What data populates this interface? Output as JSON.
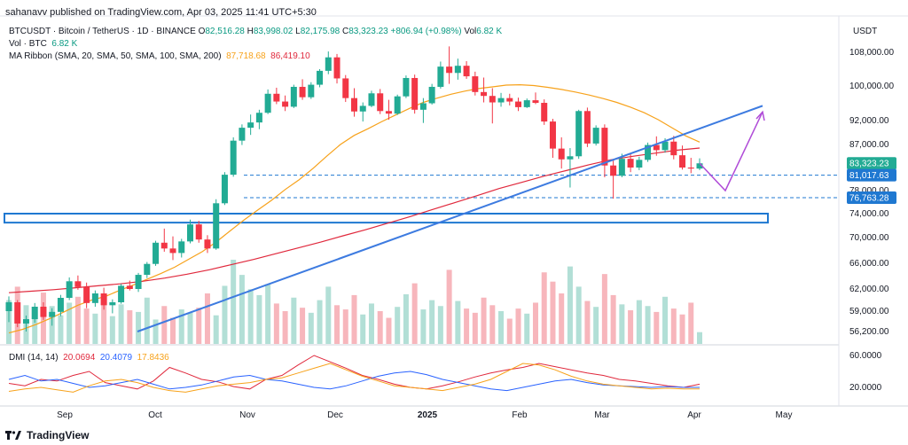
{
  "header": {
    "published": "sahanavv published on TradingView.com, Apr 03, 2025 11:41 UTC+5:30"
  },
  "legend": {
    "symbol": "BTCUSDT · Bitcoin / TetherUS · 1D · BINANCE",
    "o_label": "O",
    "o": "82,516.28",
    "h_label": "H",
    "h": "83,998.02",
    "l_label": "L",
    "l": "82,175.98",
    "c_label": "C",
    "c": "83,323.23",
    "change": "+806.94 (+0.98%)",
    "vol_label": "Vol",
    "vol": "6.82 K",
    "vol_btc_label": "Vol · BTC",
    "vol_btc": "6.82 K",
    "ma_label": "MA Ribbon (SMA, 20, SMA, 50, SMA, 100, SMA, 200)",
    "ma1": "87,718.68",
    "ma2": "86,419.10"
  },
  "currency": "USDT",
  "dmi": {
    "label": "DMI (14, 14)",
    "v1": "20.0694",
    "v2": "20.4079",
    "v3": "17.8436"
  },
  "footer": {
    "brand": "TradingView"
  },
  "colors": {
    "up": "#22ab94",
    "down": "#f23645",
    "ma_orange": "#f7a21b",
    "ma_red": "#e0283c",
    "trend": "#3d7be0",
    "projection": "#b04cd8",
    "zone": "#1f78d1"
  },
  "chart_data": {
    "type": "candlestick",
    "x_ticks": [
      "Sep",
      "Oct",
      "Nov",
      "Dec",
      "2025",
      "Feb",
      "Mar",
      "Apr",
      "May"
    ],
    "y_ticks": [
      "108,000.00",
      "100,000.00",
      "92,000.00",
      "87,000.00",
      "78,000.00",
      "74,000.00",
      "70,000.00",
      "66,000.00",
      "62,000.00",
      "59,000.00",
      "56,200.00"
    ],
    "price_tags": [
      {
        "value": 83323.23,
        "label": "83,323.23",
        "color": "#22ab94"
      },
      {
        "value": 81017.63,
        "label": "81,017.63",
        "color": "#1f78d1"
      },
      {
        "value": 76763.28,
        "label": "76,763.28",
        "color": "#1f78d1"
      }
    ],
    "dmi_ticks": [
      "60.0000",
      "20.0000"
    ],
    "candles_ohlc": [
      [
        59000,
        61000,
        57500,
        60200
      ],
      [
        60200,
        60500,
        56800,
        57300
      ],
      [
        57300,
        58400,
        56200,
        57900
      ],
      [
        57900,
        60100,
        57400,
        59600
      ],
      [
        59600,
        60200,
        57800,
        58200
      ],
      [
        58200,
        59400,
        57000,
        58900
      ],
      [
        58900,
        61200,
        58300,
        60800
      ],
      [
        60800,
        63800,
        60500,
        63200
      ],
      [
        63200,
        64100,
        61900,
        62300
      ],
      [
        62300,
        63000,
        59400,
        60100
      ],
      [
        60100,
        61800,
        59600,
        61400
      ],
      [
        61400,
        62200,
        59200,
        59800
      ],
      [
        59800,
        60600,
        58700,
        60200
      ],
      [
        60200,
        62800,
        60000,
        62500
      ],
      [
        62500,
        63300,
        61800,
        62000
      ],
      [
        62000,
        64500,
        61600,
        64200
      ],
      [
        64200,
        66200,
        63700,
        65900
      ],
      [
        65900,
        69500,
        65600,
        69200
      ],
      [
        69200,
        71500,
        67800,
        68300
      ],
      [
        68300,
        70200,
        66500,
        67600
      ],
      [
        67600,
        69800,
        66900,
        69400
      ],
      [
        69400,
        73000,
        69100,
        72200
      ],
      [
        72200,
        72800,
        69200,
        69700
      ],
      [
        69700,
        70400,
        67600,
        68300
      ],
      [
        68300,
        76500,
        68100,
        75800
      ],
      [
        75800,
        81600,
        75500,
        81100
      ],
      [
        81100,
        88500,
        80700,
        87800
      ],
      [
        87800,
        91200,
        86900,
        90500
      ],
      [
        90500,
        93400,
        89000,
        91600
      ],
      [
        91600,
        94500,
        90200,
        93800
      ],
      [
        93800,
        99200,
        93500,
        98200
      ],
      [
        98200,
        99600,
        95800,
        96400
      ],
      [
        96400,
        97800,
        94200,
        95200
      ],
      [
        95200,
        100300,
        94900,
        99800
      ],
      [
        99800,
        101600,
        96800,
        97400
      ],
      [
        97400,
        100900,
        97000,
        100300
      ],
      [
        100300,
        104000,
        99700,
        103600
      ],
      [
        103600,
        108200,
        102800,
        106800
      ],
      [
        106800,
        107600,
        100600,
        101800
      ],
      [
        101800,
        102600,
        96300,
        97200
      ],
      [
        97200,
        99500,
        92900,
        94100
      ],
      [
        94100,
        96200,
        91800,
        95400
      ],
      [
        95400,
        98900,
        95100,
        98300
      ],
      [
        98300,
        99300,
        93500,
        94200
      ],
      [
        94200,
        96800,
        92200,
        93600
      ],
      [
        93600,
        98000,
        93300,
        97600
      ],
      [
        97600,
        102500,
        97200,
        101900
      ],
      [
        101900,
        102700,
        93600,
        94500
      ],
      [
        94500,
        97200,
        91500,
        96000
      ],
      [
        96000,
        100500,
        95700,
        99800
      ],
      [
        99800,
        105800,
        99400,
        104600
      ],
      [
        104600,
        109400,
        100500,
        103100
      ],
      [
        103100,
        106500,
        101500,
        104800
      ],
      [
        104800,
        105900,
        101700,
        102300
      ],
      [
        102300,
        103400,
        97800,
        98600
      ],
      [
        98600,
        102000,
        96200,
        97700
      ],
      [
        97700,
        99500,
        91400,
        96200
      ],
      [
        96200,
        98400,
        95200,
        97200
      ],
      [
        97200,
        98200,
        95500,
        96400
      ],
      [
        96400,
        97300,
        94200,
        95100
      ],
      [
        95100,
        97100,
        94900,
        96700
      ],
      [
        96700,
        98500,
        95800,
        96100
      ],
      [
        96100,
        96900,
        91100,
        91800
      ],
      [
        91800,
        92400,
        84400,
        86200
      ],
      [
        86200,
        88500,
        82300,
        84100
      ],
      [
        84100,
        86300,
        78600,
        84700
      ],
      [
        84700,
        94500,
        84200,
        94200
      ],
      [
        94200,
        95000,
        86500,
        87200
      ],
      [
        87200,
        91000,
        86800,
        90500
      ],
      [
        90500,
        91200,
        80600,
        82900
      ],
      [
        82900,
        83900,
        76600,
        80900
      ],
      [
        80900,
        85200,
        80600,
        84200
      ],
      [
        84200,
        85300,
        81600,
        82500
      ],
      [
        82500,
        84600,
        82000,
        84000
      ],
      [
        84000,
        87400,
        83600,
        86900
      ],
      [
        86900,
        88700,
        84800,
        85900
      ],
      [
        85900,
        88300,
        85400,
        87600
      ],
      [
        87600,
        88800,
        84100,
        84900
      ],
      [
        84900,
        86800,
        82100,
        82500
      ],
      [
        82500,
        84400,
        81400,
        82300
      ],
      [
        82300,
        84300,
        82000,
        83323
      ]
    ],
    "volume_pct": [
      0.52,
      0.68,
      0.46,
      0.38,
      0.61,
      0.45,
      0.34,
      0.49,
      0.56,
      0.42,
      0.36,
      0.51,
      0.33,
      0.47,
      0.4,
      0.38,
      0.55,
      0.29,
      0.45,
      0.31,
      0.41,
      0.37,
      0.43,
      0.6,
      0.34,
      0.69,
      1.0,
      0.82,
      0.65,
      0.58,
      0.71,
      0.48,
      0.39,
      0.55,
      0.43,
      0.37,
      0.52,
      0.68,
      0.46,
      0.41,
      0.58,
      0.35,
      0.48,
      0.39,
      0.31,
      0.44,
      0.59,
      0.72,
      0.41,
      0.52,
      0.45,
      0.88,
      0.51,
      0.42,
      0.37,
      0.55,
      0.46,
      0.39,
      0.3,
      0.42,
      0.36,
      0.49,
      0.85,
      0.74,
      0.6,
      0.92,
      0.68,
      0.51,
      0.44,
      0.83,
      0.58,
      0.47,
      0.4,
      0.52,
      0.45,
      0.38,
      0.56,
      0.42,
      0.35,
      0.49,
      0.14
    ],
    "ma_sma50": [
      56000,
      56500,
      57200,
      58000,
      58900,
      59800,
      60500,
      61000,
      61800,
      62600,
      63500,
      64400,
      65400,
      66600,
      67800,
      69300,
      71100,
      72900,
      74600,
      76300,
      78200,
      80100,
      82300,
      84700,
      87000,
      88900,
      90300,
      91800,
      93300,
      94800,
      96200,
      97200,
      98100,
      98800,
      99400,
      99800,
      100200,
      100300,
      100100,
      99700,
      99200,
      98600,
      97900,
      97100,
      96200,
      95100,
      93800,
      92200,
      90500,
      88800,
      87500
    ],
    "ma_sma200": [
      61500,
      61700,
      61900,
      62200,
      62500,
      62800,
      63200,
      63700,
      64300,
      65000,
      65800,
      66600,
      67500,
      68400,
      69300,
      70300,
      71300,
      72400,
      73500,
      74700,
      75900,
      77100,
      78400,
      79600,
      80800,
      81900,
      83000,
      84000,
      84700,
      85300,
      85900,
      86300
    ],
    "trendline_start": {
      "x": "Oct",
      "price": 56200
    },
    "trendline_end": {
      "x": "May",
      "price": 95000
    },
    "support_levels": [
      81017.63,
      76763.28
    ],
    "demand_zone": [
      72500,
      74000
    ],
    "projection": [
      83323.23,
      78000,
      94000
    ],
    "dmi_series": [
      {
        "values": [
          25,
          22,
          30,
          28,
          35,
          40,
          26,
          22,
          18,
          28,
          45,
          38,
          30,
          27,
          21,
          18,
          30,
          35,
          48,
          60,
          52,
          44,
          35,
          30,
          24,
          20,
          18,
          22,
          27,
          33,
          38,
          42,
          45,
          50,
          46,
          42,
          38,
          35,
          30,
          28,
          25,
          22,
          20,
          24
        ]
      },
      {
        "values": [
          30,
          35,
          28,
          30,
          25,
          20,
          22,
          26,
          30,
          24,
          18,
          20,
          23,
          28,
          33,
          35,
          30,
          28,
          24,
          20,
          18,
          22,
          28,
          34,
          38,
          40,
          36,
          30,
          26,
          22,
          18,
          16,
          20,
          24,
          28,
          30,
          26,
          23,
          22,
          21,
          20,
          21,
          20,
          20
        ]
      },
      {
        "values": [
          15,
          18,
          20,
          17,
          14,
          22,
          28,
          30,
          26,
          20,
          16,
          14,
          18,
          22,
          24,
          26,
          30,
          32,
          38,
          44,
          50,
          42,
          34,
          28,
          22,
          20,
          18,
          16,
          20,
          24,
          30,
          40,
          50,
          48,
          42,
          34,
          28,
          24,
          22,
          20,
          18,
          19,
          18,
          18
        ]
      }
    ]
  }
}
